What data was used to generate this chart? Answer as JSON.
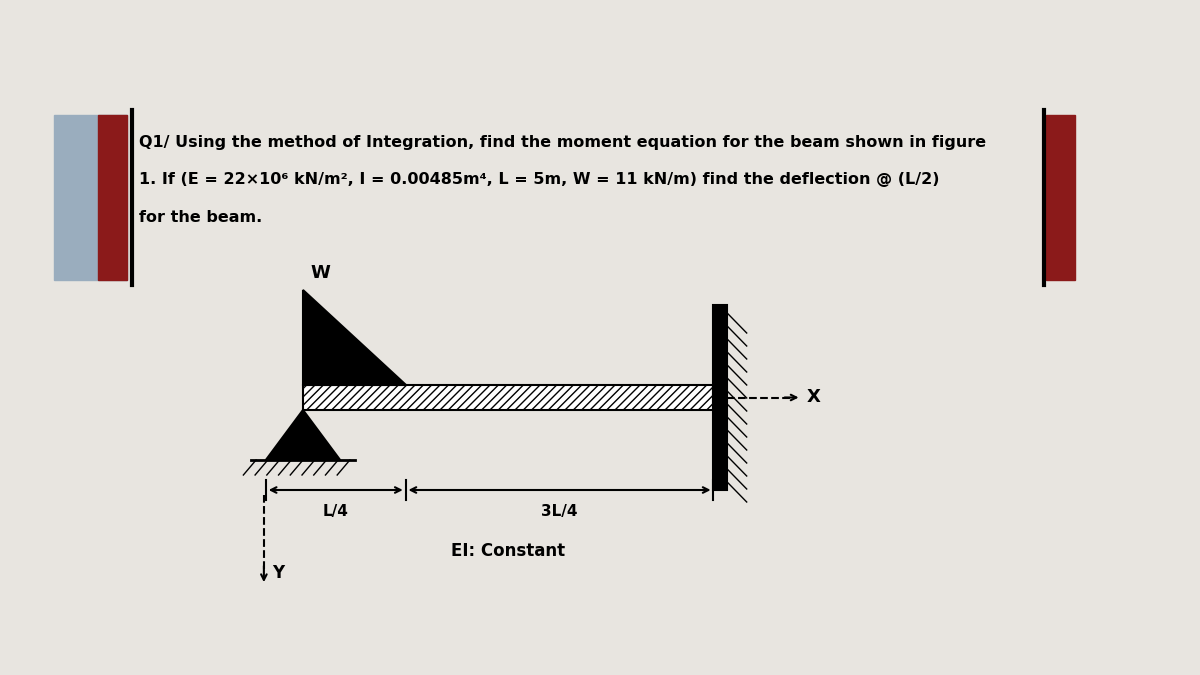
{
  "bg_color": "#e8e5e0",
  "text_line1": "Q1/ Using the method of Integration, find the moment equation for the beam shown in figure",
  "text_line2": "1. If (E = 22×10⁶ kN/m², I = 0.00485m⁴, L = 5m, W = 11 kN/m) find the deflection @ (L/2)",
  "text_line3": "for the beam.",
  "label_W": "W",
  "label_L4": "L/4",
  "label_3L4": "3L/4",
  "label_EI": "EI: Constant",
  "label_X": "X",
  "label_Y": "Y",
  "maroon_color": "#8b1a1a",
  "bluegray_color": "#9aadbe",
  "black": "#000000",
  "white": "#ffffff"
}
